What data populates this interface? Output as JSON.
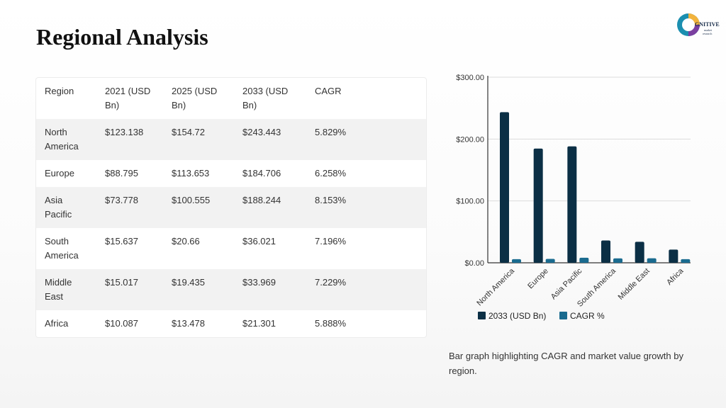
{
  "page": {
    "title": "Regional Analysis",
    "caption": "Bar graph highlighting CAGR and market value growth by region."
  },
  "logo": {
    "icon": "cognitive-market-research-logo",
    "text": "GNITIVE"
  },
  "table": {
    "headers": [
      "Region",
      "2021 (USD Bn)",
      "2025 (USD Bn)",
      "2033 (USD Bn)",
      "CAGR"
    ],
    "rows": [
      [
        "North America",
        "$123.138",
        "$154.72",
        "$243.443",
        "5.829%"
      ],
      [
        "Europe",
        "$88.795",
        "$113.653",
        "$184.706",
        "6.258%"
      ],
      [
        "Asia Pacific",
        "$73.778",
        "$100.555",
        "$188.244",
        "8.153%"
      ],
      [
        "South America",
        "$15.637",
        "$20.66",
        "$36.021",
        "7.196%"
      ],
      [
        "Middle East",
        "$15.017",
        "$19.435",
        "$33.969",
        "7.229%"
      ],
      [
        "Africa",
        "$10.087",
        "$13.478",
        "$21.301",
        "5.888%"
      ]
    ]
  },
  "colors": {
    "series1": "#0b2f45",
    "series2": "#1a6b8f",
    "grid": "#dcdcdc",
    "axis": "#333333"
  },
  "chart_data": {
    "type": "bar",
    "categories": [
      "North America",
      "Europe",
      "Asia Pacific",
      "South America",
      "Middle East",
      "Africa"
    ],
    "series": [
      {
        "name": "2033 (USD Bn)",
        "values": [
          243.443,
          184.706,
          188.244,
          36.021,
          33.969,
          21.301
        ]
      },
      {
        "name": "CAGR %",
        "values": [
          5.829,
          6.258,
          8.153,
          7.196,
          7.229,
          5.888
        ]
      }
    ],
    "yticks": [
      "$0.00",
      "$100.00",
      "$200.00",
      "$300.00"
    ],
    "ylim": [
      0,
      300
    ],
    "grid": true,
    "legend": "bottom-left"
  }
}
